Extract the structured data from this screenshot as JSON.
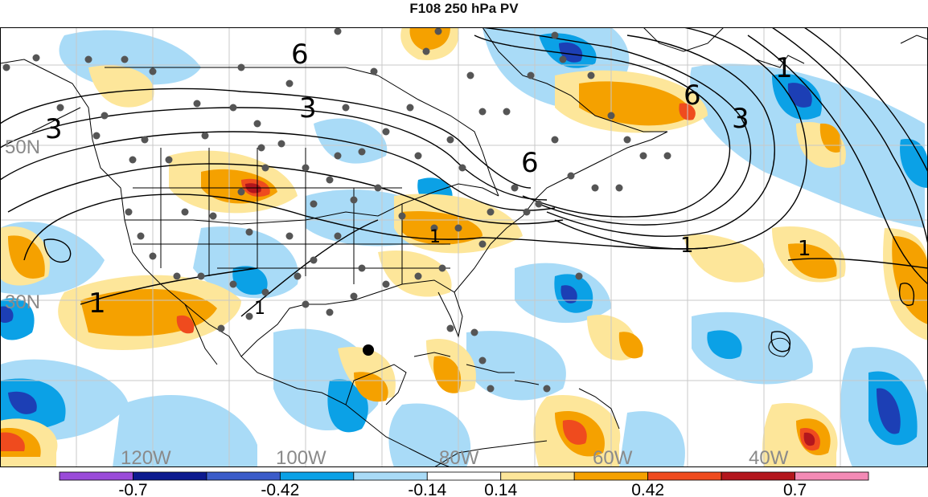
{
  "title": "F108 250 hPa PV",
  "map": {
    "lat_labels": [
      "50N",
      "30N"
    ],
    "lon_labels": [
      "120W",
      "100W",
      "80W",
      "60W",
      "40W"
    ],
    "contour_labels": [
      "6",
      "3",
      "3",
      "1",
      "1",
      "6",
      "6",
      "1",
      "3",
      "1",
      "1",
      "1"
    ],
    "colors": {
      "neg_strong": "#1c3fb5",
      "neg_medium": "#0ba1e6",
      "neg_light": "#a9dbf7",
      "pos_light": "#fde69a",
      "pos_medium": "#f5a100",
      "pos_strong": "#ef4b1e",
      "pos_max": "#b3161d",
      "dots": "#555555",
      "contour": "#000000",
      "borders": "#000000"
    }
  },
  "colorbar": {
    "ticks": [
      "-0.7",
      "-0.42",
      "-0.14",
      "0.14",
      "0.42",
      "0.7"
    ],
    "colors": [
      "#9a4bd9",
      "#0c1a8f",
      "#3b5cc9",
      "#0ba1e6",
      "#a9dbf7",
      "#ffffff",
      "#fde69a",
      "#f5a100",
      "#ef4b1e",
      "#b3161d",
      "#f38ab5"
    ]
  }
}
